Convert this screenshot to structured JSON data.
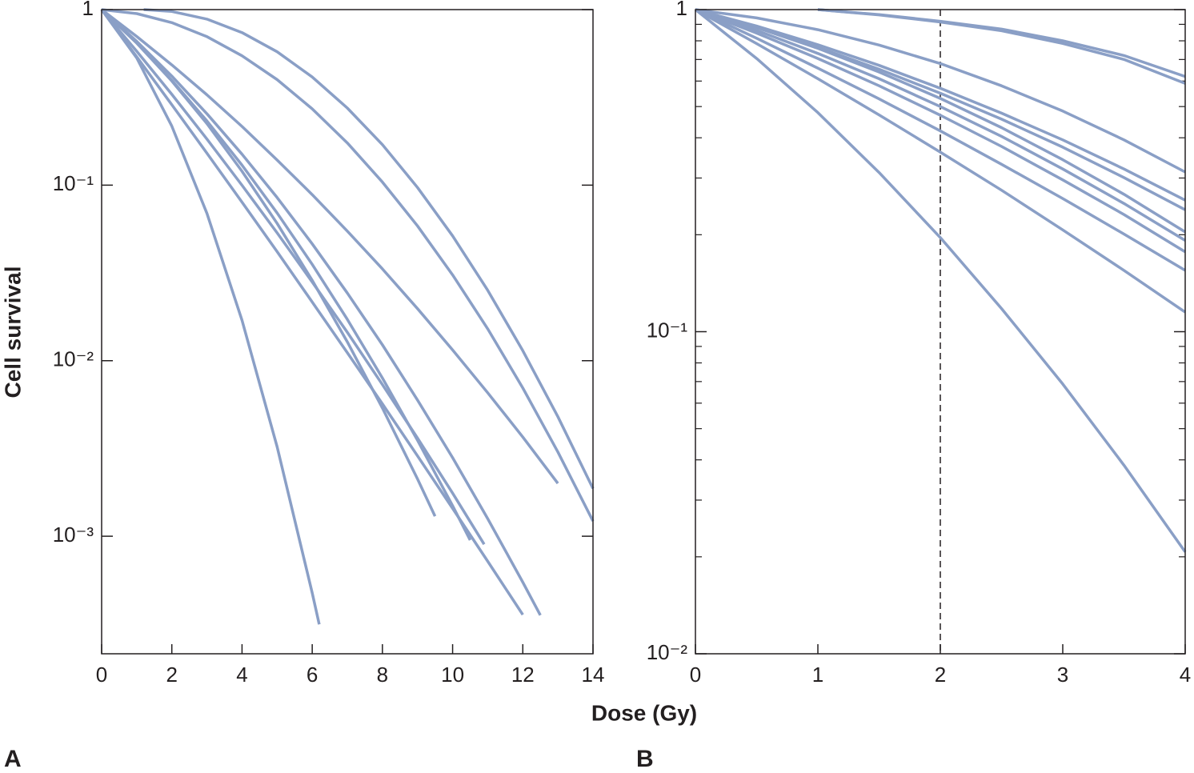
{
  "chart_data": [
    {
      "type": "line",
      "label": "A",
      "ylabel": "Cell survival",
      "xlabel": "Dose (Gy)",
      "yscale": "log",
      "xlim": [
        0,
        14
      ],
      "xticks": [
        0,
        2,
        4,
        6,
        8,
        10,
        12,
        14
      ],
      "ylim": [
        0.000214,
        1
      ],
      "yticks": [
        {
          "value": 0.001,
          "label": "10⁻³"
        },
        {
          "value": 0.01,
          "label": "10⁻²"
        },
        {
          "value": 0.1,
          "label": "10⁻¹"
        },
        1
      ],
      "series": [
        {
          "color": "#8a9fc6",
          "x": [
            0,
            1,
            2,
            3,
            4,
            5,
            6,
            6.2
          ],
          "values": [
            1,
            0.53,
            0.217,
            0.069,
            0.017,
            0.00323,
            0.000476,
            0.000315
          ]
        },
        {
          "color": "#8a9fc6",
          "x": [
            0,
            1,
            2,
            3,
            4,
            5,
            6,
            7,
            8,
            9,
            9.5
          ],
          "values": [
            1,
            0.645,
            0.392,
            0.224,
            0.12,
            0.0605,
            0.0287,
            0.0128,
            0.00537,
            0.00212,
            0.0013
          ]
        },
        {
          "color": "#8a9fc6",
          "x": [
            0,
            1,
            2,
            3,
            4,
            5,
            6,
            7,
            8,
            9,
            10,
            10.5
          ],
          "values": [
            1,
            0.644,
            0.396,
            0.232,
            0.13,
            0.0694,
            0.0354,
            0.0172,
            0.00796,
            0.00352,
            0.00149,
            0.00095
          ]
        },
        {
          "color": "#8a9fc6",
          "x": [
            0,
            1,
            2,
            3,
            4,
            5,
            6,
            7,
            8,
            9,
            10,
            10.9
          ],
          "values": [
            1,
            0.579,
            0.329,
            0.183,
            0.0999,
            0.0535,
            0.0281,
            0.0145,
            0.0073,
            0.00362,
            0.00176,
            0.0009
          ]
        },
        {
          "color": "#8a9fc6",
          "x": [
            0,
            1,
            2,
            3,
            4,
            5,
            6,
            7,
            8,
            9,
            10,
            11,
            12
          ],
          "values": [
            1,
            0.538,
            0.287,
            0.152,
            0.08,
            0.0418,
            0.0216,
            0.0111,
            0.00567,
            0.00287,
            0.00144,
            0.00072,
            0.000357
          ]
        },
        {
          "color": "#8a9fc6",
          "x": [
            0,
            1,
            2,
            3,
            4,
            5,
            6,
            7,
            8,
            9,
            10,
            11,
            12,
            12.5
          ],
          "values": [
            1,
            0.659,
            0.418,
            0.255,
            0.15,
            0.085,
            0.0463,
            0.0243,
            0.0123,
            0.00597,
            0.0028,
            0.00126,
            0.000547,
            0.000355
          ]
        },
        {
          "color": "#8a9fc6",
          "x": [
            0,
            1,
            2,
            3,
            4,
            5,
            6,
            7,
            8,
            9,
            10,
            11,
            12,
            13
          ],
          "values": [
            1,
            0.703,
            0.484,
            0.327,
            0.216,
            0.139,
            0.0883,
            0.0547,
            0.0333,
            0.0198,
            0.0115,
            0.00657,
            0.00367,
            0.002
          ]
        },
        {
          "color": "#8a9fc6",
          "x": [
            0,
            1,
            2,
            3,
            4,
            5,
            6,
            7,
            8,
            9,
            10,
            11,
            12,
            13,
            14
          ],
          "values": [
            1,
            0.949,
            0.843,
            0.701,
            0.546,
            0.399,
            0.272,
            0.174,
            0.104,
            0.0586,
            0.0308,
            0.0152,
            0.00699,
            0.00302,
            0.00122
          ]
        },
        {
          "color": "#8a9fc6",
          "x": [
            1.2,
            2,
            3,
            4,
            5,
            6,
            7,
            8,
            9,
            10,
            11,
            12,
            13,
            14
          ],
          "values": [
            1,
            0.976,
            0.883,
            0.74,
            0.575,
            0.413,
            0.275,
            0.17,
            0.097,
            0.0514,
            0.0252,
            0.0114,
            0.0048,
            0.00187
          ]
        }
      ]
    },
    {
      "type": "line",
      "label": "B",
      "yscale": "log",
      "xlim": [
        0,
        4
      ],
      "xticks": [
        0,
        1,
        2,
        3,
        4
      ],
      "ylim": [
        0.01,
        1
      ],
      "yticks": [
        {
          "value": 0.01,
          "label": "10⁻²"
        },
        {
          "value": 0.1,
          "label": "10⁻¹"
        },
        1
      ],
      "yminor": [
        0.02,
        0.03,
        0.04,
        0.05,
        0.06,
        0.07,
        0.08,
        0.09,
        0.2,
        0.3,
        0.4,
        0.5,
        0.6,
        0.7,
        0.8,
        0.9
      ],
      "vline": 2,
      "series": [
        {
          "color": "#8a9fc6",
          "x": [
            0,
            0.5,
            1,
            1.5,
            2,
            2.5,
            3,
            3.5,
            4
          ],
          "values": [
            1,
            0.705,
            0.479,
            0.312,
            0.196,
            0.118,
            0.0688,
            0.0385,
            0.0207
          ]
        },
        {
          "color": "#8a9fc6",
          "x": [
            0,
            0.5,
            1,
            1.5,
            2,
            2.5,
            3,
            3.5,
            4
          ],
          "values": [
            1,
            0.784,
            0.61,
            0.471,
            0.361,
            0.275,
            0.207,
            0.155,
            0.115
          ]
        },
        {
          "color": "#8a9fc6",
          "x": [
            0,
            0.5,
            1,
            1.5,
            2,
            2.5,
            3,
            3.5,
            4
          ],
          "values": [
            1,
            0.815,
            0.658,
            0.528,
            0.42,
            0.331,
            0.259,
            0.201,
            0.155
          ]
        },
        {
          "color": "#8a9fc6",
          "x": [
            0,
            0.5,
            1,
            1.5,
            2,
            2.5,
            3,
            3.5,
            4
          ],
          "values": [
            1,
            0.845,
            0.705,
            0.58,
            0.47,
            0.376,
            0.296,
            0.231,
            0.177
          ]
        },
        {
          "color": "#8a9fc6",
          "x": [
            0,
            0.5,
            1,
            1.5,
            2,
            2.5,
            3,
            3.5,
            4
          ],
          "values": [
            1,
            0.862,
            0.731,
            0.61,
            0.5,
            0.404,
            0.32,
            0.25,
            0.192
          ]
        },
        {
          "color": "#8a9fc6",
          "x": [
            0,
            0.5,
            1,
            1.5,
            2,
            2.5,
            3,
            3.5,
            4
          ],
          "values": [
            1,
            0.879,
            0.758,
            0.64,
            0.53,
            0.43,
            0.342,
            0.267,
            0.204
          ]
        },
        {
          "color": "#8a9fc6",
          "x": [
            0,
            0.5,
            1,
            1.5,
            2,
            2.5,
            3,
            3.5,
            4
          ],
          "values": [
            1,
            0.88,
            0.764,
            0.653,
            0.55,
            0.457,
            0.374,
            0.301,
            0.239
          ]
        },
        {
          "color": "#8a9fc6",
          "x": [
            0,
            0.5,
            1,
            1.5,
            2,
            2.5,
            3,
            3.5,
            4
          ],
          "values": [
            1,
            0.889,
            0.778,
            0.671,
            0.57,
            0.477,
            0.394,
            0.32,
            0.256
          ]
        },
        {
          "color": "#8a9fc6",
          "x": [
            0,
            0.5,
            1,
            1.5,
            2,
            2.5,
            3,
            3.5,
            4
          ],
          "values": [
            1,
            0.942,
            0.866,
            0.776,
            0.68,
            0.58,
            0.484,
            0.394,
            0.313
          ]
        },
        {
          "color": "#8a9fc6",
          "x": [
            1,
            1.5,
            2,
            2.5,
            3,
            3.5,
            4
          ],
          "values": [
            1,
            0.965,
            0.92,
            0.87,
            0.8,
            0.72,
            0.62
          ]
        },
        {
          "color": "#8a9fc6",
          "x": [
            1,
            1.5,
            2,
            2.5,
            3,
            3.5,
            4
          ],
          "values": [
            1,
            0.963,
            0.915,
            0.86,
            0.785,
            0.7,
            0.59
          ]
        }
      ]
    }
  ]
}
